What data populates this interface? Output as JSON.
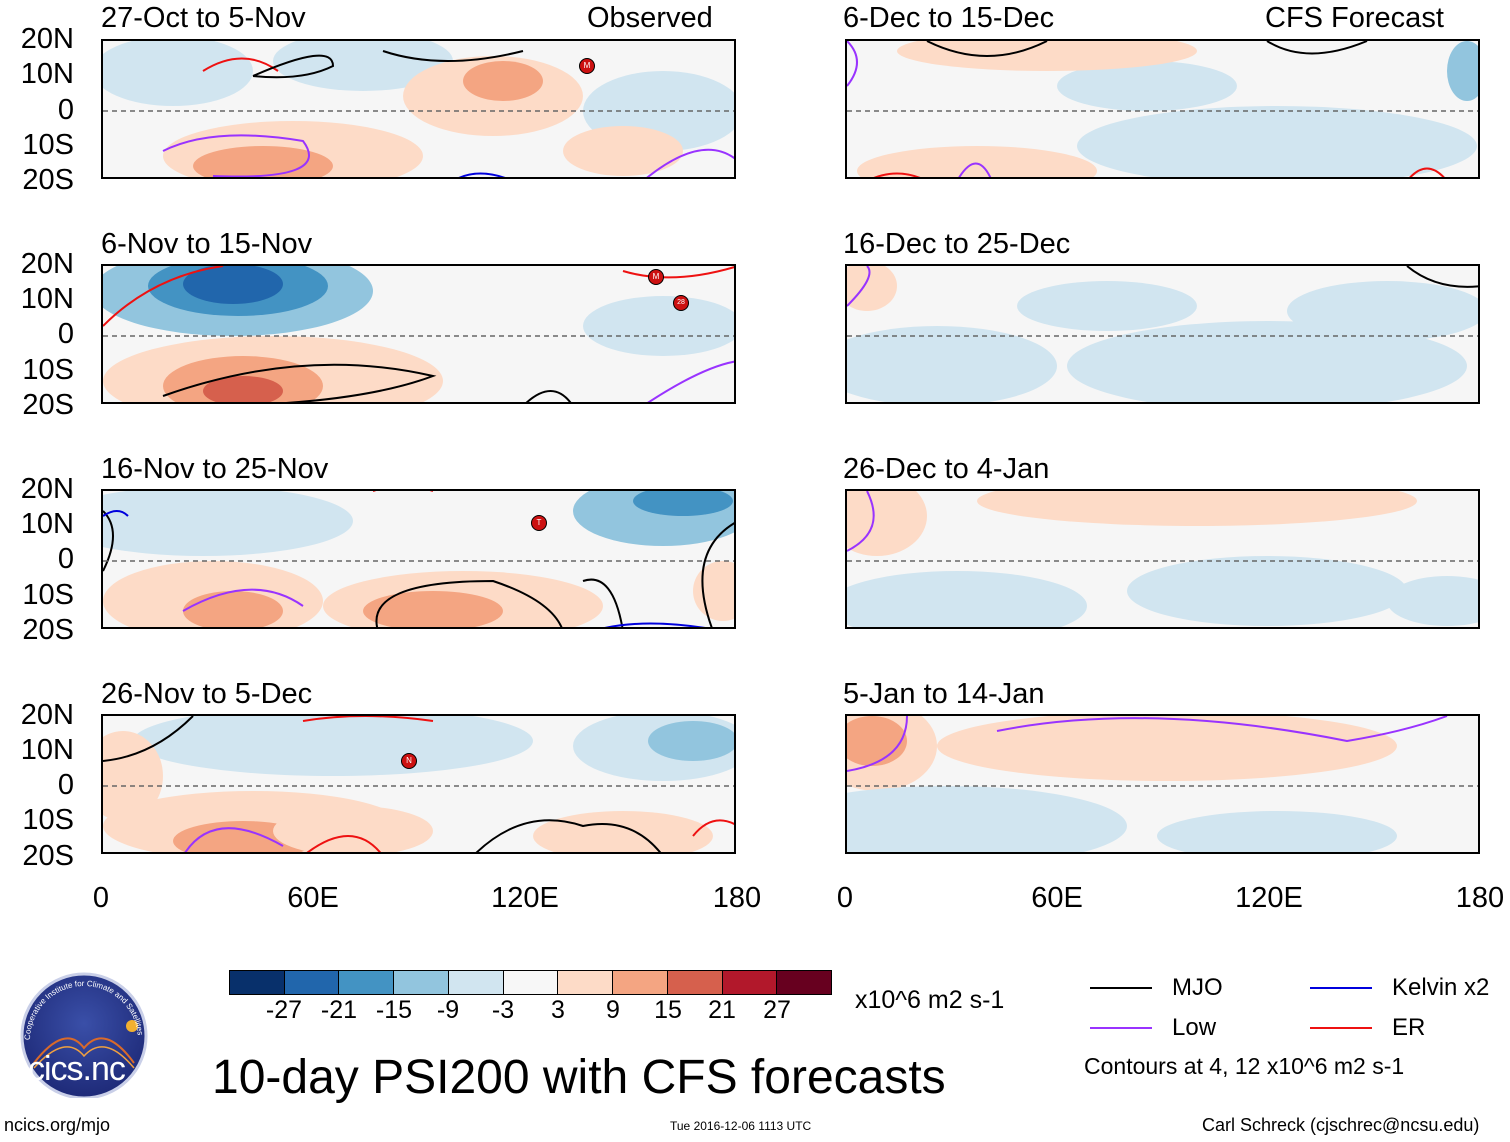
{
  "lat_labels": [
    "20N",
    "10N",
    "0",
    "10S",
    "20S"
  ],
  "lon_labels": [
    "0",
    "60E",
    "120E",
    "180"
  ],
  "observed_label": "Observed",
  "forecast_label": "CFS Forecast",
  "panels_left": [
    {
      "title": "27-Oct to 5-Nov",
      "storms": [
        "M"
      ]
    },
    {
      "title": "6-Nov to 15-Nov",
      "storms": [
        "M",
        "28"
      ]
    },
    {
      "title": "16-Nov to 25-Nov",
      "storms": [
        "T"
      ]
    },
    {
      "title": "26-Nov to 5-Dec",
      "storms": [
        "N"
      ]
    }
  ],
  "panels_right": [
    {
      "title": "6-Dec to 15-Dec"
    },
    {
      "title": "16-Dec to 25-Dec"
    },
    {
      "title": "26-Dec to 4-Jan"
    },
    {
      "title": "5-Jan to 14-Jan"
    }
  ],
  "colorbar": {
    "colors": [
      "#08306b",
      "#2166ac",
      "#4393c3",
      "#92c5de",
      "#d1e5f0",
      "#f7f7f7",
      "#fddbc7",
      "#f4a582",
      "#d6604d",
      "#b2182b",
      "#67001f"
    ],
    "ticks": [
      "-27",
      "-21",
      "-15",
      "-9",
      "-3",
      "3",
      "9",
      "15",
      "21",
      "27"
    ],
    "units": "x10^6 m2 s-1"
  },
  "legend": {
    "items": [
      {
        "label": "MJO",
        "color": "#000000"
      },
      {
        "label": "Kelvin x2",
        "color": "#0000dd"
      },
      {
        "label": "Low",
        "color": "#9933ff"
      },
      {
        "label": "ER",
        "color": "#ee1111"
      }
    ],
    "contours_note": "Contours at 4, 12 x10^6 m2 s-1"
  },
  "logo_text": "cics.nc",
  "logo_ring_text": "Cooperative Institute for Climate and Satellites",
  "main_title": "10-day PSI200 with CFS forecasts",
  "footer_left": "ncics.org/mjo",
  "footer_center": "Tue 2016-12-06 1113 UTC",
  "footer_right": "Carl Schreck (cjschrec@ncsu.edu)"
}
